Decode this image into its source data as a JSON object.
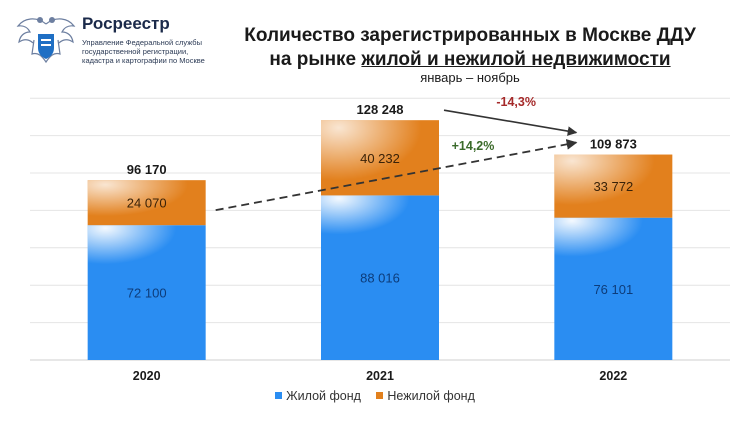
{
  "header": {
    "org_name": "Росреестр",
    "org_desc_lines": [
      "Управление Федеральной службы",
      "государственной регистрации,",
      "кадастра и картографии по Москве"
    ],
    "logo_icon": "eagle-emblem-icon"
  },
  "title": {
    "line1": "Количество зарегистрированных в Москве ДДУ",
    "line2_prefix": "на рынке ",
    "line2_underlined": "жилой и нежилой недвижимости",
    "subtitle": "январь – ноябрь"
  },
  "colors": {
    "residential": "#2a8df2",
    "nonresidential": "#e2801d",
    "change_up": "#3a6a2a",
    "change_down": "#a52a2a",
    "trend_line": "#333333"
  },
  "chart_data": {
    "type": "bar",
    "stacked": true,
    "categories": [
      "2020",
      "2021",
      "2022"
    ],
    "series": [
      {
        "name": "Жилой фонд",
        "values": [
          72100,
          88016,
          76101
        ],
        "labels": [
          "72 100",
          "88 016",
          "76 101"
        ]
      },
      {
        "name": "Нежилой фонд",
        "values": [
          24070,
          40232,
          33772
        ],
        "labels": [
          "24 070",
          "40 232",
          "33 772"
        ]
      }
    ],
    "totals": [
      96170,
      128248,
      109873
    ],
    "total_labels": [
      "96 170",
      "128 248",
      "109 873"
    ],
    "ylim": [
      0,
      140000
    ],
    "grid": true,
    "legend": "bottom",
    "annotations": [
      {
        "from": "2020",
        "to": "2022",
        "text": "+14,2%",
        "style": "dashed"
      },
      {
        "from": "2021",
        "to": "2022",
        "text": "-14,3%",
        "style": "solid"
      }
    ]
  }
}
